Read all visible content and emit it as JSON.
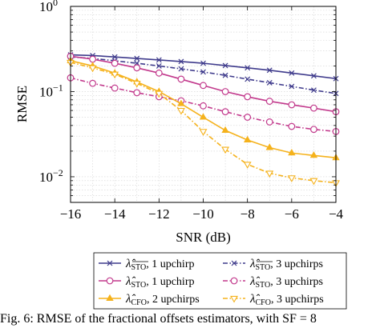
{
  "chart_data": {
    "type": "line",
    "xlabel": "SNR (dB)",
    "ylabel": "RMSE",
    "x_scale": "linear",
    "y_scale": "log",
    "xlim": [
      -16,
      -4
    ],
    "ylim": [
      0.005,
      1
    ],
    "xticks": [
      -16,
      -14,
      -12,
      -10,
      -8,
      -6,
      -4
    ],
    "xtick_labels": [
      "−16",
      "−14",
      "−12",
      "−10",
      "−8",
      "−6",
      "−4"
    ],
    "yticks": [
      {
        "value": 1,
        "mantissa": "10",
        "exp": "0"
      },
      {
        "value": 0.1,
        "mantissa": "10",
        "exp": "−1"
      },
      {
        "value": 0.01,
        "mantissa": "10",
        "exp": "−2"
      }
    ],
    "grid": true,
    "legend_position": "below-plot",
    "x": [
      -16,
      -15,
      -14,
      -13,
      -12,
      -11,
      -10,
      -9,
      -8,
      -7,
      -6,
      -5,
      -4
    ],
    "series": [
      {
        "name": "λ̂STO, 1 upchirp",
        "name_main": "λ̂",
        "name_sub": "STO",
        "name_overline": true,
        "name_rest": ", 1 upchirp",
        "color": "#3f3b8c",
        "dash": "solid",
        "marker": "x",
        "values": [
          0.27,
          0.265,
          0.255,
          0.245,
          0.235,
          0.225,
          0.215,
          0.202,
          0.19,
          0.178,
          0.165,
          0.153,
          0.142
        ]
      },
      {
        "name": "λ̂STO, 3 upchirps",
        "name_main": "λ̂",
        "name_sub": "STO",
        "name_overline": true,
        "name_rest": ", 3 upchirps",
        "color": "#3f3b8c",
        "dash": "dashdot",
        "marker": "x",
        "values": [
          0.255,
          0.245,
          0.23,
          0.215,
          0.2,
          0.185,
          0.17,
          0.155,
          0.14,
          0.127,
          0.115,
          0.104,
          0.095
        ]
      },
      {
        "name": "λ̂STO, 1 upchirp",
        "name_main": "λ̂",
        "name_sub": "STO",
        "name_overline": false,
        "name_rest": ", 1 upchirp",
        "color": "#c2398c",
        "dash": "solid",
        "marker": "circle",
        "values": [
          0.26,
          0.24,
          0.215,
          0.19,
          0.165,
          0.14,
          0.118,
          0.1,
          0.087,
          0.077,
          0.07,
          0.064,
          0.058
        ]
      },
      {
        "name": "λ̂STO, 3 upchirps",
        "name_main": "λ̂",
        "name_sub": "STO",
        "name_overline": false,
        "name_rest": ", 3 upchirps",
        "color": "#c2398c",
        "dash": "dashdot",
        "marker": "circle",
        "values": [
          0.145,
          0.125,
          0.11,
          0.097,
          0.087,
          0.078,
          0.068,
          0.058,
          0.05,
          0.044,
          0.039,
          0.036,
          0.034
        ]
      },
      {
        "name": "λ̂CFO, 2 upchirps",
        "name_main": "λ̂",
        "name_sub": "CFO",
        "name_overline": false,
        "name_rest": ", 2 upchirps",
        "color": "#f5b21c",
        "dash": "solid",
        "marker": "triangle",
        "values": [
          0.23,
          0.2,
          0.165,
          0.13,
          0.1,
          0.072,
          0.05,
          0.035,
          0.027,
          0.022,
          0.019,
          0.0178,
          0.0167
        ]
      },
      {
        "name": "λ̂CFO, 3 upchirps",
        "name_main": "λ̂",
        "name_sub": "CFO",
        "name_overline": false,
        "name_rest": ", 3 upchirps",
        "color": "#f5b21c",
        "dash": "dashdot",
        "marker": "triangle-down",
        "values": [
          0.22,
          0.19,
          0.16,
          0.125,
          0.095,
          0.06,
          0.034,
          0.021,
          0.014,
          0.011,
          0.0097,
          0.009,
          0.0085
        ]
      }
    ]
  },
  "caption": "Fig. 6: RMSE of the fractional offsets estimators, with SF = 8"
}
